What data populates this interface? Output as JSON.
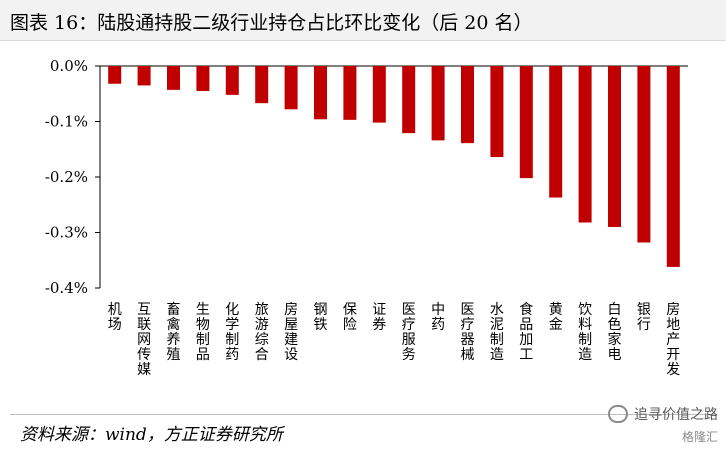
{
  "header": {
    "title": "图表 16：陆股通持股二级行业持仓占比环比变化（后 20 名）"
  },
  "footer": {
    "source": "资料来源：wind，方正证券研究所"
  },
  "watermark": {
    "text": "追寻价值之路",
    "brand": "格隆汇"
  },
  "colors": {
    "bar": "#c00000",
    "axis": "#000000"
  },
  "chart_data": {
    "type": "bar",
    "categories": [
      "机场",
      "互联网传媒",
      "畜禽养殖",
      "生物制品",
      "化学制药",
      "旅游综合",
      "房屋建设",
      "钢铁",
      "保险",
      "证券",
      "医疗服务",
      "中药",
      "医疗器械",
      "水泥制造",
      "食品加工",
      "黄金",
      "饮料制造",
      "白色家电",
      "银行",
      "房地产开发"
    ],
    "values": [
      -0.032,
      -0.035,
      -0.043,
      -0.045,
      -0.052,
      -0.067,
      -0.078,
      -0.096,
      -0.097,
      -0.102,
      -0.121,
      -0.134,
      -0.139,
      -0.164,
      -0.202,
      -0.237,
      -0.282,
      -0.29,
      -0.318,
      -0.362
    ],
    "yticks": [
      "0.0%",
      "-0.1%",
      "-0.2%",
      "-0.3%",
      "-0.4%"
    ],
    "ytick_values": [
      0,
      -0.1,
      -0.2,
      -0.3,
      -0.4
    ],
    "ylim": [
      -0.4,
      0
    ],
    "title": "",
    "xlabel": "",
    "ylabel": "",
    "grid": false,
    "legend": "none"
  }
}
